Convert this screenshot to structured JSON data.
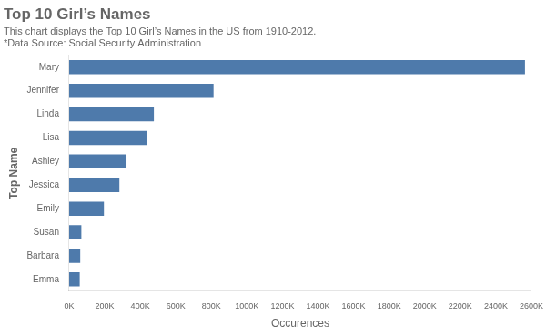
{
  "chart_data": {
    "type": "bar",
    "orientation": "horizontal",
    "title": "Top 10 Girl’s Names",
    "subtitle": "This chart displays the Top 10 Girl’s Names in the US from 1910-2012.",
    "annotations": [
      "*Data Source: Social Security Administration"
    ],
    "xlabel": "Occurences",
    "ylabel": "Top Name",
    "categories": [
      "Mary",
      "Jennifer",
      "Linda",
      "Lisa",
      "Ashley",
      "Jessica",
      "Emily",
      "Susan",
      "Barbara",
      "Emma"
    ],
    "values": [
      2563758,
      812261,
      476580,
      436497,
      322607,
      282684,
      195610,
      68671,
      62434,
      59558
    ],
    "color": "#4e7aab",
    "xlim": [
      0,
      2600000
    ],
    "xticks": [
      {
        "value": 0,
        "label": "0K"
      },
      {
        "value": 200000,
        "label": "200K"
      },
      {
        "value": 400000,
        "label": "400K"
      },
      {
        "value": 600000,
        "label": "600K"
      },
      {
        "value": 800000,
        "label": "800K"
      },
      {
        "value": 1000000,
        "label": "1000K"
      },
      {
        "value": 1200000,
        "label": "1200K"
      },
      {
        "value": 1400000,
        "label": "1400K"
      },
      {
        "value": 1600000,
        "label": "1600K"
      },
      {
        "value": 1800000,
        "label": "1800K"
      },
      {
        "value": 2000000,
        "label": "2000K"
      },
      {
        "value": 2200000,
        "label": "2200K"
      },
      {
        "value": 2400000,
        "label": "2400K"
      },
      {
        "value": 2600000,
        "label": "2600K"
      }
    ],
    "grid": false
  }
}
